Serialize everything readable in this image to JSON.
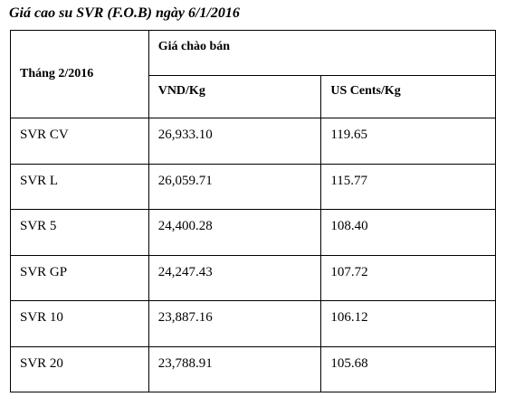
{
  "title": "Giá cao su SVR (F.O.B) ngày 6/1/2016",
  "table": {
    "corner": "Tháng 2/2016",
    "group": "Giá chào bán",
    "columns": [
      "VND/Kg",
      "US Cents/Kg"
    ],
    "rows": [
      [
        "SVR CV",
        "26,933.10",
        "119.65"
      ],
      [
        "SVR L",
        "26,059.71",
        "115.77"
      ],
      [
        "SVR 5",
        "24,400.28",
        "108.40"
      ],
      [
        "SVR GP",
        "24,247.43",
        "107.72"
      ],
      [
        "SVR 10",
        "23,887.16",
        "106.12"
      ],
      [
        "SVR 20",
        "23,788.91",
        "105.68"
      ]
    ]
  }
}
